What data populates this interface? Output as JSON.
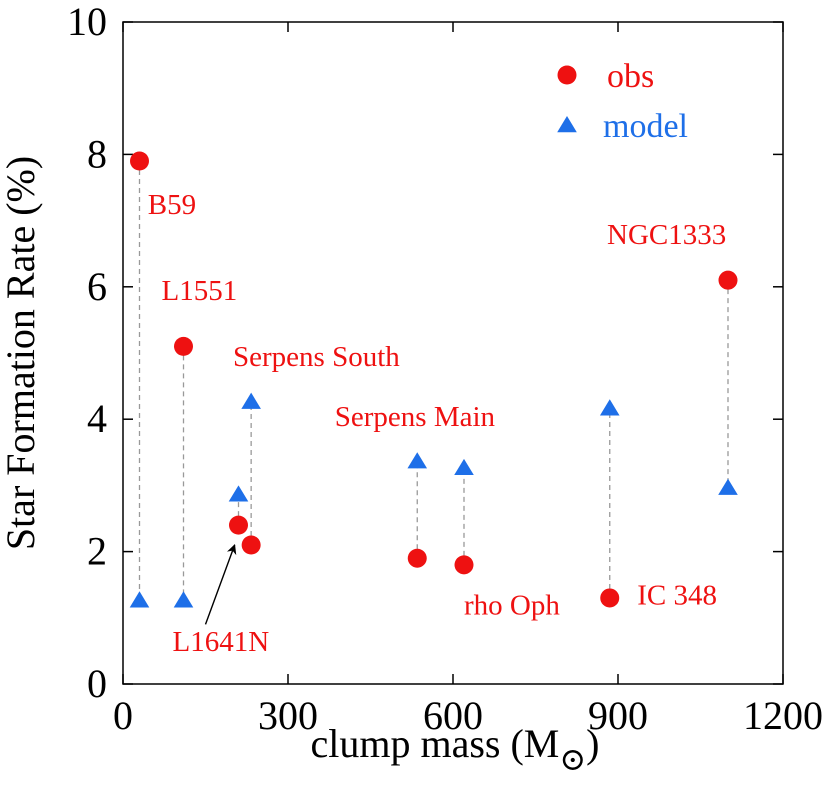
{
  "chart_data": {
    "type": "scatter",
    "xlabel": "clump mass (M",
    "xlabel_suffix": ")",
    "xlabel_symbol": "⊙",
    "ylabel": "Star Formation Rate (%)",
    "xlim": [
      0,
      1200
    ],
    "ylim": [
      0,
      10
    ],
    "xticks": [
      0,
      300,
      600,
      900,
      1200
    ],
    "yticks": [
      0,
      2,
      4,
      6,
      8,
      10
    ],
    "series": [
      {
        "name": "obs",
        "marker": "circle",
        "color": "#ee1111",
        "points": [
          {
            "x": 30,
            "y": 7.9
          },
          {
            "x": 110,
            "y": 5.1
          },
          {
            "x": 210,
            "y": 2.4
          },
          {
            "x": 233,
            "y": 2.1
          },
          {
            "x": 535,
            "y": 1.9
          },
          {
            "x": 620,
            "y": 1.8
          },
          {
            "x": 885,
            "y": 1.3
          },
          {
            "x": 1100,
            "y": 6.1
          }
        ]
      },
      {
        "name": "model",
        "marker": "triangle",
        "color": "#1e6fe8",
        "points": [
          {
            "x": 30,
            "y": 1.25
          },
          {
            "x": 110,
            "y": 1.25
          },
          {
            "x": 210,
            "y": 2.85
          },
          {
            "x": 233,
            "y": 4.25
          },
          {
            "x": 535,
            "y": 3.35
          },
          {
            "x": 620,
            "y": 3.25
          },
          {
            "x": 885,
            "y": 4.15
          },
          {
            "x": 1100,
            "y": 2.95
          }
        ]
      }
    ],
    "annotations": [
      {
        "text": "B59",
        "x": 45,
        "y": 7.1
      },
      {
        "text": "L1551",
        "x": 70,
        "y": 5.8
      },
      {
        "text": "Serpens South",
        "x": 200,
        "y": 4.8
      },
      {
        "text": "Serpens Main",
        "x": 385,
        "y": 3.9
      },
      {
        "text": "NGC1333",
        "x": 880,
        "y": 6.65
      },
      {
        "text": "IC 348",
        "x": 935,
        "y": 1.2
      },
      {
        "text": "rho Oph",
        "x": 620,
        "y": 1.05
      },
      {
        "text": "L1641N",
        "x": 90,
        "y": 0.5
      }
    ],
    "arrow": {
      "from": {
        "x": 150,
        "y": 0.9
      },
      "to": {
        "x": 203,
        "y": 2.1
      }
    },
    "legend": {
      "position": "top-right",
      "entries": [
        "obs",
        "model"
      ]
    }
  }
}
